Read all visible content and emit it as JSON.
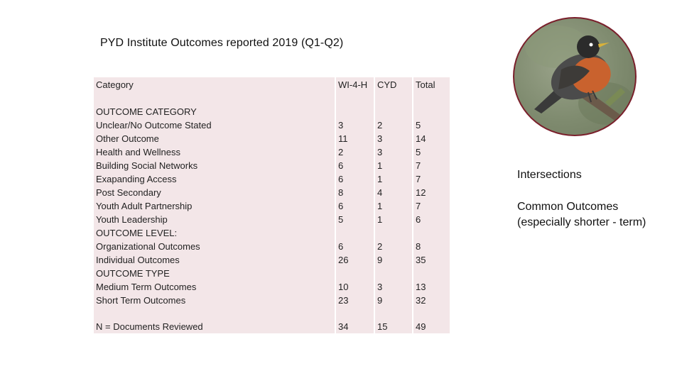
{
  "title": "PYD Institute Outcomes reported 2019 (Q1-Q2)",
  "table": {
    "headers": [
      "Category",
      "WI-4-H",
      "CYD",
      "Total"
    ],
    "sections": [
      {
        "heading": "OUTCOME CATEGORY",
        "rows": [
          {
            "label": "Unclear/No Outcome Stated",
            "wi4h": "3",
            "cyd": "2",
            "total": "5"
          },
          {
            "label": "Other Outcome",
            "wi4h": "11",
            "cyd": "3",
            "total": "14"
          },
          {
            "label": "Health and Wellness",
            "wi4h": "2",
            "cyd": "3",
            "total": "5"
          },
          {
            "label": "Building Social Networks",
            "wi4h": "6",
            "cyd": "1",
            "total": "7"
          },
          {
            "label": "Exapanding Access",
            "wi4h": "6",
            "cyd": "1",
            "total": "7"
          },
          {
            "label": "Post Secondary",
            "wi4h": "8",
            "cyd": "4",
            "total": "12"
          },
          {
            "label": "Youth Adult Partnership",
            "wi4h": "6",
            "cyd": "1",
            "total": "7"
          },
          {
            "label": "Youth Leadership",
            "wi4h": "5",
            "cyd": "1",
            "total": "6"
          }
        ]
      },
      {
        "heading": "OUTCOME LEVEL:",
        "rows": [
          {
            "label": "Organizational Outcomes",
            "wi4h": "6",
            "cyd": "2",
            "total": "8"
          },
          {
            "label": "Individual Outcomes",
            "wi4h": "26",
            "cyd": "9",
            "total": "35"
          }
        ]
      },
      {
        "heading": "OUTCOME TYPE",
        "rows": [
          {
            "label": "Medium Term Outcomes",
            "wi4h": "10",
            "cyd": "3",
            "total": "13"
          },
          {
            "label": "Short Term Outcomes",
            "wi4h": "23",
            "cyd": "9",
            "total": "32"
          }
        ]
      }
    ],
    "footer": {
      "label": "N = Documents Reviewed",
      "wi4h": "34",
      "cyd": "15",
      "total": "49"
    }
  },
  "side_notes": {
    "intersections": "Intersections",
    "common_line1": "Common Outcomes",
    "common_line2": "(especially shorter - term)"
  },
  "image": {
    "subject": "robin-bird-photo"
  },
  "colors": {
    "table_bg": "#f3e6e8",
    "circle_border": "#7a1f2b",
    "robin_breast": "#c9622e"
  }
}
